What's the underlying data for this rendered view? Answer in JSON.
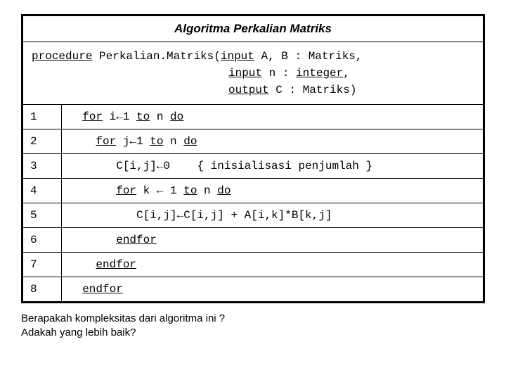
{
  "title": "Algoritma Perkalian Matriks",
  "signature": {
    "kw_procedure": "procedure",
    "proc_name": " Perkalian.Matriks(",
    "kw_input1": "input",
    "sig1_rest": " A, B : Matriks,",
    "kw_input2": "input",
    "sig2_mid": " n : ",
    "kw_integer": "integer",
    "sig2_end": ",",
    "kw_output": "output",
    "sig3_rest": " C : Matriks)"
  },
  "rows": [
    {
      "n": "1",
      "pad": "  ",
      "pre": "",
      "kw1": "for",
      "mid": " i←1 ",
      "kw2": "to",
      "mid2": " n ",
      "kw3": "do",
      "post": ""
    },
    {
      "n": "2",
      "pad": "    ",
      "pre": "",
      "kw1": "for",
      "mid": " j←1 ",
      "kw2": "to",
      "mid2": " n ",
      "kw3": "do",
      "post": ""
    },
    {
      "n": "3",
      "pad": "       ",
      "pre": "C[i,j]←0    { inisialisasi penjumlah }",
      "kw1": "",
      "mid": "",
      "kw2": "",
      "mid2": "",
      "kw3": "",
      "post": ""
    },
    {
      "n": "4",
      "pad": "       ",
      "pre": "",
      "kw1": "for",
      "mid": " k ← 1 ",
      "kw2": "to",
      "mid2": " n ",
      "kw3": "do",
      "post": ""
    },
    {
      "n": "5",
      "pad": "          ",
      "pre": "C[i,j]←C[i,j] + A[i,k]*B[k,j]",
      "kw1": "",
      "mid": "",
      "kw2": "",
      "mid2": "",
      "kw3": "",
      "post": ""
    },
    {
      "n": "6",
      "pad": "       ",
      "pre": "",
      "kw1": "endfor",
      "mid": "",
      "kw2": "",
      "mid2": "",
      "kw3": "",
      "post": ""
    },
    {
      "n": "7",
      "pad": "    ",
      "pre": "",
      "kw1": "endfor",
      "mid": "",
      "kw2": "",
      "mid2": "",
      "kw3": "",
      "post": ""
    },
    {
      "n": "8",
      "pad": "  ",
      "pre": "",
      "kw1": "endfor",
      "mid": "",
      "kw2": "",
      "mid2": "",
      "kw3": "",
      "post": ""
    }
  ],
  "question": {
    "line1": "Berapakah kompleksitas dari algoritma ini ?",
    "line2": "Adakah yang lebih baik?"
  },
  "colors": {
    "border": "#000000",
    "background": "#ffffff",
    "text": "#000000"
  }
}
